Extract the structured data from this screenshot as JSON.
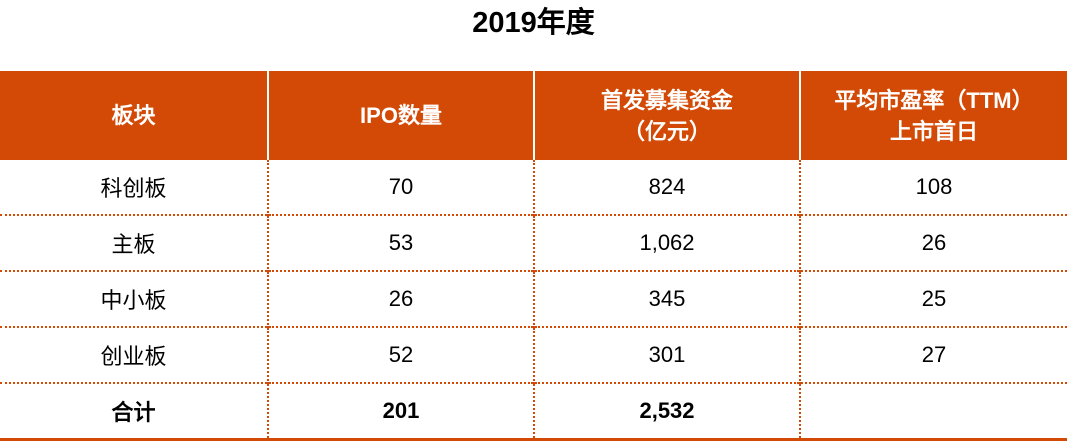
{
  "title": "2019年度",
  "colors": {
    "header_bg": "#d34a06",
    "header_text": "#ffffff",
    "divider": "#d34a06"
  },
  "table": {
    "headers": [
      {
        "lines": [
          "板块"
        ]
      },
      {
        "lines": [
          "IPO数量"
        ]
      },
      {
        "lines": [
          "首发募集资金",
          "（亿元）"
        ]
      },
      {
        "lines": [
          "平均市盈率（TTM）",
          "上市首日"
        ]
      }
    ],
    "rows": [
      [
        "科创板",
        "70",
        "824",
        "108"
      ],
      [
        "主板",
        "53",
        "1,062",
        "26"
      ],
      [
        "中小板",
        "26",
        "345",
        "25"
      ],
      [
        "创业板",
        "52",
        "301",
        "27"
      ],
      [
        "合计",
        "201",
        "2,532",
        ""
      ]
    ]
  }
}
